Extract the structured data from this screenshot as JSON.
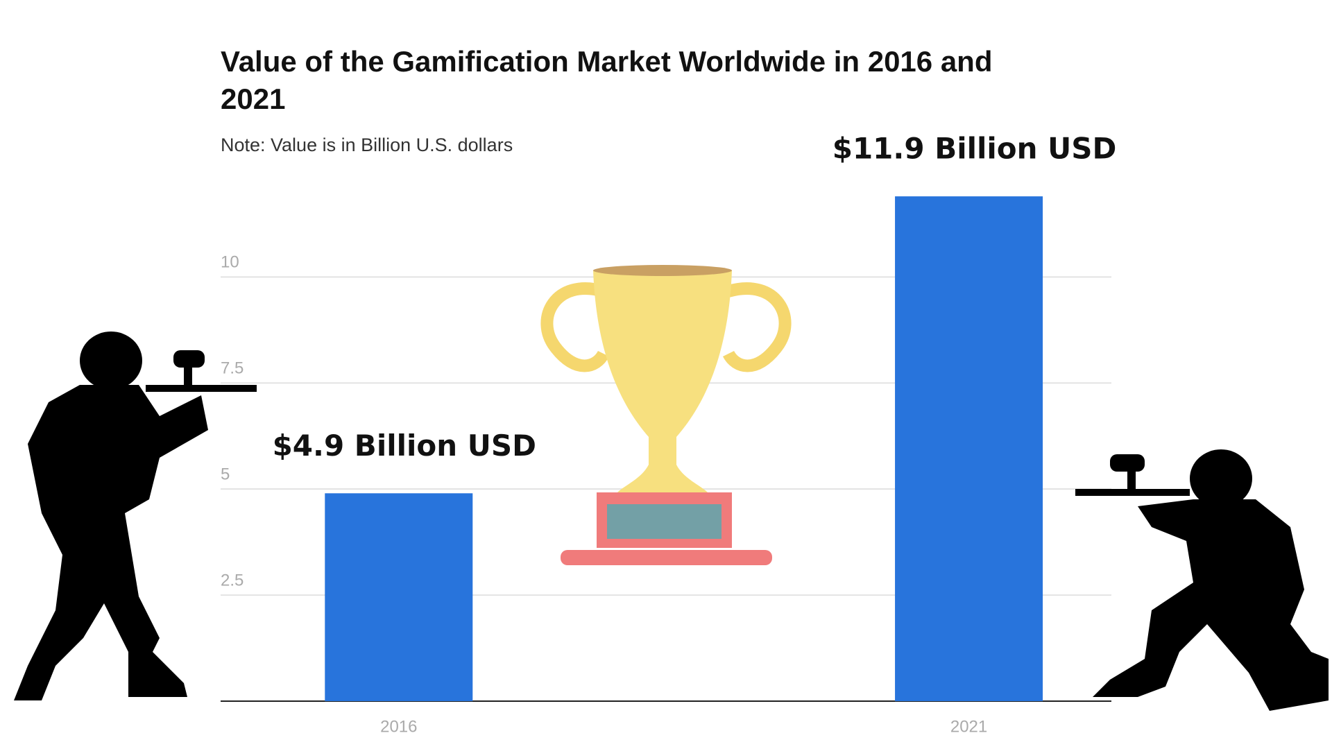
{
  "chart_data": {
    "type": "bar",
    "title": "Value of the Gamification Market Worldwide in 2016 and 2021",
    "subtitle": "Note: Value is in Billion U.S. dollars",
    "categories": [
      "2016",
      "2021"
    ],
    "values": [
      4.9,
      11.9
    ],
    "value_labels": [
      "$4.9 Billion USD",
      "$11.9 Billion USD"
    ],
    "color": "#2874dc",
    "ylim": [
      0,
      12
    ],
    "yticks": [
      2.5,
      5,
      7.5,
      10
    ],
    "grid": true
  }
}
